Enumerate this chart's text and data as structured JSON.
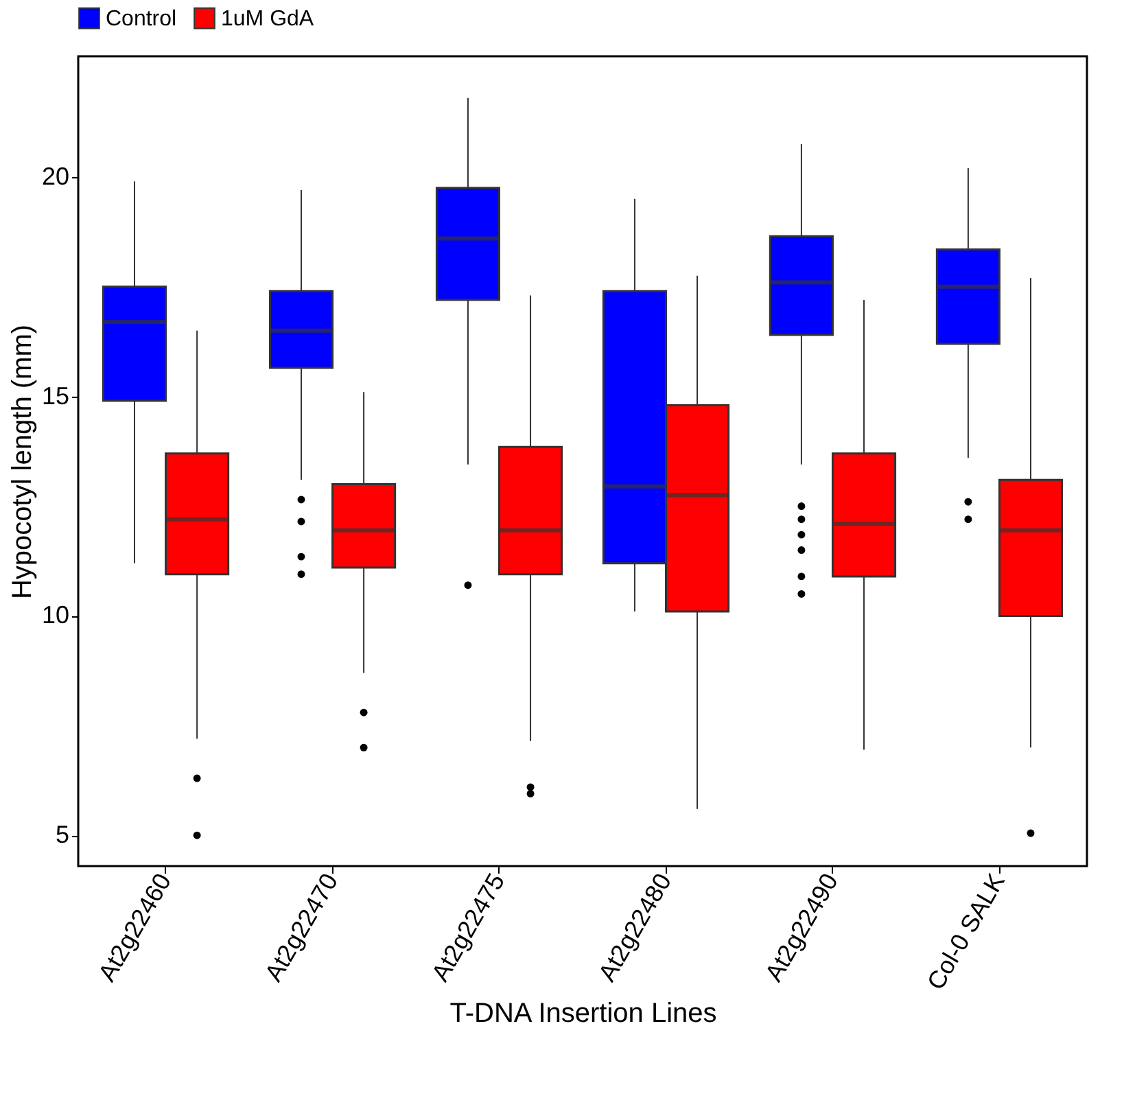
{
  "chart_data": {
    "type": "box",
    "xlabel": "T-DNA Insertion Lines",
    "ylabel": "Hypocotyl length (mm)",
    "categories": [
      "At2g22460",
      "At2g22470",
      "At2g22475",
      "At2g22480",
      "At2g22490",
      "Col-0 SALK"
    ],
    "ylim": [
      4.3,
      22.75
    ],
    "yticks": [
      5,
      10,
      15,
      20
    ],
    "grid": false,
    "legend": "top",
    "series": [
      {
        "name": "Control",
        "color": "#0000ff",
        "boxes": [
          {
            "low": 11.2,
            "q1": 14.9,
            "median": 16.7,
            "q3": 17.5,
            "high": 19.9
          },
          {
            "low": 13.1,
            "q1": 15.65,
            "median": 16.5,
            "q3": 17.4,
            "high": 19.7,
            "outliers": [
              12.65,
              12.15,
              11.35,
              10.95
            ]
          },
          {
            "low": 13.45,
            "q1": 17.2,
            "median": 18.6,
            "q3": 19.75,
            "high": 21.8,
            "outliers": [
              10.7
            ]
          },
          {
            "low": 10.1,
            "q1": 11.2,
            "median": 12.95,
            "q3": 17.4,
            "high": 19.5
          },
          {
            "low": 13.45,
            "q1": 16.4,
            "median": 17.6,
            "q3": 18.65,
            "high": 20.75,
            "outliers": [
              12.5,
              12.2,
              11.85,
              11.5,
              10.9,
              10.5
            ]
          },
          {
            "low": 13.6,
            "q1": 16.2,
            "median": 17.5,
            "q3": 18.35,
            "high": 20.2,
            "outliers": [
              12.6,
              12.2
            ]
          }
        ]
      },
      {
        "name": "1uM GdA",
        "color": "#ff0000",
        "boxes": [
          {
            "low": 7.2,
            "q1": 10.95,
            "median": 12.2,
            "q3": 13.7,
            "high": 16.5,
            "outliers": [
              6.3,
              5.0
            ]
          },
          {
            "low": 8.7,
            "q1": 11.1,
            "median": 11.95,
            "q3": 13.0,
            "high": 15.1,
            "outliers": [
              7.8,
              7.0
            ]
          },
          {
            "low": 7.15,
            "q1": 10.95,
            "median": 11.95,
            "q3": 13.85,
            "high": 17.3,
            "outliers": [
              6.1,
              5.95
            ]
          },
          {
            "low": 5.6,
            "q1": 10.1,
            "median": 12.75,
            "q3": 14.8,
            "high": 17.75
          },
          {
            "low": 6.95,
            "q1": 10.9,
            "median": 12.1,
            "q3": 13.7,
            "high": 17.2
          },
          {
            "low": 7.0,
            "q1": 10.0,
            "median": 11.95,
            "q3": 13.1,
            "high": 17.7,
            "outliers": [
              5.05
            ]
          }
        ]
      }
    ]
  }
}
